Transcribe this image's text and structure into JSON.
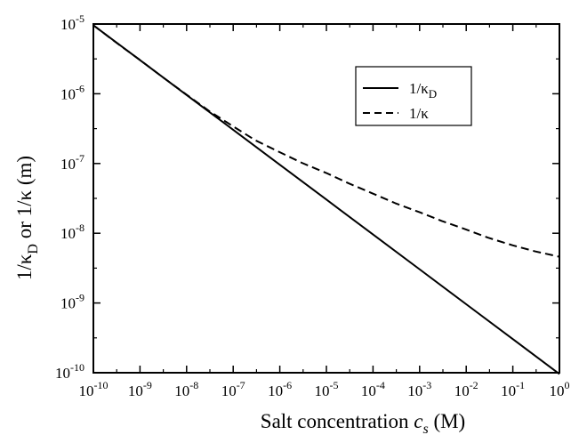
{
  "chart_data": {
    "type": "line",
    "xscale": "log",
    "yscale": "log",
    "xlim": [
      1e-10,
      1
    ],
    "ylim": [
      1e-10,
      1e-05
    ],
    "x_ticks": [
      {
        "base": "10",
        "exp": "-10",
        "value": 1e-10
      },
      {
        "base": "10",
        "exp": "-9",
        "value": 1e-09
      },
      {
        "base": "10",
        "exp": "-8",
        "value": 1e-08
      },
      {
        "base": "10",
        "exp": "-7",
        "value": 1e-07
      },
      {
        "base": "10",
        "exp": "-6",
        "value": 1e-06
      },
      {
        "base": "10",
        "exp": "-5",
        "value": 1e-05
      },
      {
        "base": "10",
        "exp": "-4",
        "value": 0.0001
      },
      {
        "base": "10",
        "exp": "-3",
        "value": 0.001
      },
      {
        "base": "10",
        "exp": "-2",
        "value": 0.01
      },
      {
        "base": "10",
        "exp": "-1",
        "value": 0.1
      },
      {
        "base": "10",
        "exp": "0",
        "value": 1
      }
    ],
    "y_ticks": [
      {
        "base": "10",
        "exp": "-5",
        "value": 1e-05
      },
      {
        "base": "10",
        "exp": "-6",
        "value": 1e-06
      },
      {
        "base": "10",
        "exp": "-7",
        "value": 1e-07
      },
      {
        "base": "10",
        "exp": "-8",
        "value": 1e-08
      },
      {
        "base": "10",
        "exp": "-9",
        "value": 1e-09
      },
      {
        "base": "10",
        "exp": "-10",
        "value": 1e-10
      }
    ],
    "xlabel": {
      "main": "Salt concentration ",
      "var": "c",
      "sub": "s",
      "unit": " (M)"
    },
    "ylabel": {
      "a": "1/κ",
      "a_sub": "D",
      "mid": " or 1/κ",
      "unit": " (m)"
    },
    "legend_position": "top-right",
    "series": [
      {
        "name": "1/κ",
        "name_sub": "D",
        "style": "solid",
        "color": "#000000",
        "x": [
          1e-10,
          1e-09,
          1e-08,
          1e-07,
          1e-06,
          1e-05,
          0.0001,
          0.001,
          0.01,
          0.1,
          1
        ],
        "y": [
          9.6e-06,
          3.04e-06,
          9.6e-07,
          3.04e-07,
          9.6e-08,
          3.04e-08,
          9.6e-09,
          3.04e-09,
          9.6e-10,
          3.04e-10,
          9.6e-11
        ]
      },
      {
        "name": "1/κ",
        "name_sub": "",
        "style": "dashed",
        "color": "#000000",
        "x": [
          1e-10,
          3e-10,
          1e-09,
          3e-09,
          1e-08,
          3e-08,
          1e-07,
          3e-07,
          1e-06,
          3e-06,
          1e-05,
          3e-05,
          0.0001,
          0.0003,
          0.001,
          0.003,
          0.01,
          0.03,
          0.1,
          0.3,
          1
        ],
        "y": [
          9.6e-06,
          5.5e-06,
          3.05e-06,
          1.75e-06,
          9.7e-07,
          5.7e-07,
          3.4e-07,
          2.15e-07,
          1.45e-07,
          1.02e-07,
          7.3e-08,
          5.2e-08,
          3.7e-08,
          2.7e-08,
          2e-08,
          1.5e-08,
          1.13e-08,
          8.6e-09,
          6.7e-09,
          5.5e-09,
          4.6e-09
        ]
      }
    ]
  }
}
